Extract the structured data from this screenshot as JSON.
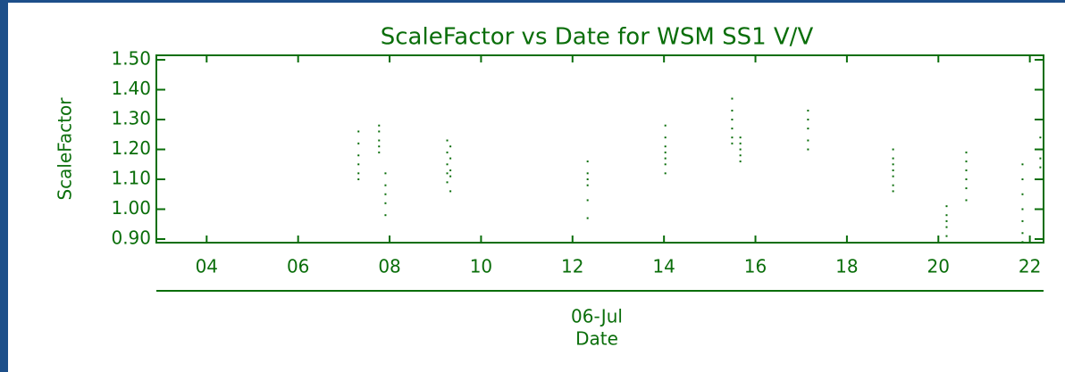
{
  "chart_data": {
    "type": "scatter",
    "title": "ScaleFactor vs Date for WSM SS1 V/V",
    "xlabel": "Date",
    "x_axis_date": "06-Jul",
    "ylabel": "ScaleFactor",
    "color": "#0a6e0a",
    "xlim": [
      2.9,
      22.3
    ],
    "xticks": [
      {
        "value": 4,
        "label": "04"
      },
      {
        "value": 6,
        "label": "06"
      },
      {
        "value": 8,
        "label": "08"
      },
      {
        "value": 10,
        "label": "10"
      },
      {
        "value": 12,
        "label": "12"
      },
      {
        "value": 14,
        "label": "14"
      },
      {
        "value": 16,
        "label": "16"
      },
      {
        "value": 18,
        "label": "18"
      },
      {
        "value": 20,
        "label": "20"
      },
      {
        "value": 22,
        "label": "22"
      }
    ],
    "ylim": [
      0.888,
      1.515
    ],
    "yticks": [
      {
        "value": 0.9,
        "label": "0.90"
      },
      {
        "value": 1.0,
        "label": "1.00"
      },
      {
        "value": 1.1,
        "label": "1.10"
      },
      {
        "value": 1.2,
        "label": "1.20"
      },
      {
        "value": 1.3,
        "label": "1.30"
      },
      {
        "value": 1.4,
        "label": "1.40"
      },
      {
        "value": 1.5,
        "label": "1.50"
      }
    ],
    "x": [
      7.32,
      7.32,
      7.32,
      7.32,
      7.32,
      7.32,
      7.77,
      7.77,
      7.77,
      7.77,
      7.77,
      7.91,
      7.91,
      7.91,
      7.91,
      7.91,
      9.26,
      9.26,
      9.26,
      9.26,
      9.26,
      9.33,
      9.33,
      9.33,
      9.33,
      9.33,
      12.33,
      12.33,
      12.33,
      12.33,
      12.33,
      12.33,
      14.03,
      14.03,
      14.03,
      14.03,
      14.03,
      14.03,
      14.03,
      15.49,
      15.49,
      15.49,
      15.49,
      15.49,
      15.49,
      15.67,
      15.67,
      15.67,
      15.67,
      15.67,
      17.15,
      17.15,
      17.15,
      17.15,
      17.15,
      19.01,
      19.01,
      19.01,
      19.01,
      19.01,
      19.01,
      19.01,
      20.18,
      20.18,
      20.18,
      20.18,
      20.18,
      20.61,
      20.61,
      20.61,
      20.61,
      20.61,
      20.61,
      21.84,
      21.84,
      21.84,
      21.84,
      21.84,
      21.84,
      21.84,
      22.23,
      22.23,
      22.23,
      22.23,
      22.23
    ],
    "values": [
      1.26,
      1.22,
      1.18,
      1.15,
      1.12,
      1.1,
      1.28,
      1.26,
      1.23,
      1.21,
      1.19,
      1.12,
      1.08,
      1.05,
      1.02,
      0.98,
      1.23,
      1.19,
      1.15,
      1.12,
      1.09,
      1.21,
      1.17,
      1.13,
      1.11,
      1.06,
      1.16,
      1.12,
      1.1,
      1.08,
      1.03,
      0.97,
      1.28,
      1.24,
      1.21,
      1.19,
      1.17,
      1.15,
      1.12,
      1.37,
      1.33,
      1.3,
      1.27,
      1.24,
      1.22,
      1.24,
      1.22,
      1.2,
      1.18,
      1.16,
      1.33,
      1.3,
      1.27,
      1.23,
      1.2,
      1.2,
      1.17,
      1.15,
      1.13,
      1.11,
      1.08,
      1.06,
      1.01,
      0.98,
      0.96,
      0.94,
      0.91,
      1.19,
      1.16,
      1.13,
      1.1,
      1.07,
      1.03,
      1.15,
      1.1,
      1.05,
      1.0,
      0.96,
      0.92,
      0.89,
      1.24,
      1.2,
      1.17,
      1.14,
      1.1
    ]
  }
}
